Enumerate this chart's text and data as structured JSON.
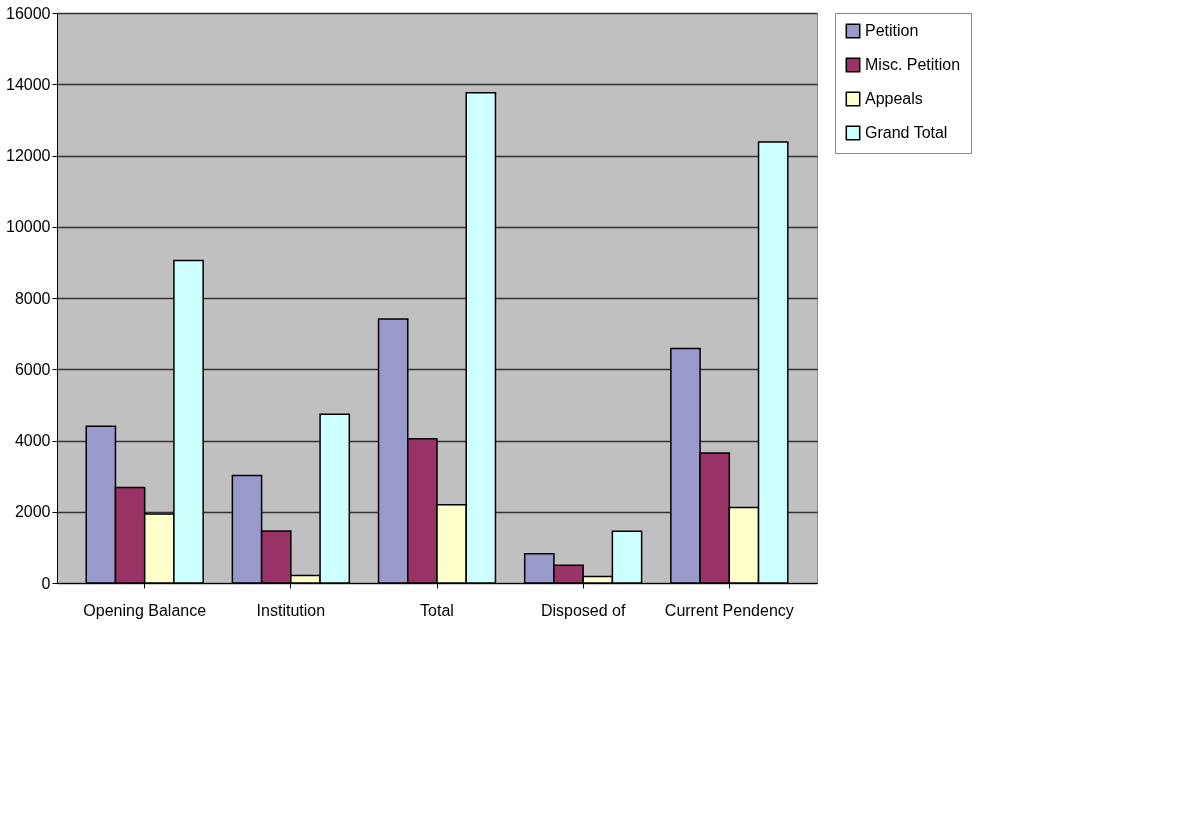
{
  "chart_data": {
    "type": "bar",
    "categories": [
      "Opening Balance",
      "Institution",
      "Total",
      "Disposed of",
      "Current Pendency"
    ],
    "series": [
      {
        "name": "Petition",
        "color": "#9999cc",
        "values": [
          4400,
          3020,
          7410,
          820,
          6580
        ]
      },
      {
        "name": "Misc. Petition",
        "color": "#993366",
        "values": [
          2680,
          1460,
          4050,
          500,
          3650
        ]
      },
      {
        "name": "Appeals",
        "color": "#ffffcc",
        "values": [
          1940,
          210,
          2200,
          180,
          2120
        ]
      },
      {
        "name": "Grand Total",
        "color": "#ccffff",
        "values": [
          9050,
          4740,
          13760,
          1450,
          12380
        ]
      }
    ],
    "ylim": [
      0,
      16000
    ],
    "yticks": [
      0,
      2000,
      4000,
      6000,
      8000,
      10000,
      12000,
      14000,
      16000
    ],
    "grid": "y",
    "legend": "right"
  }
}
